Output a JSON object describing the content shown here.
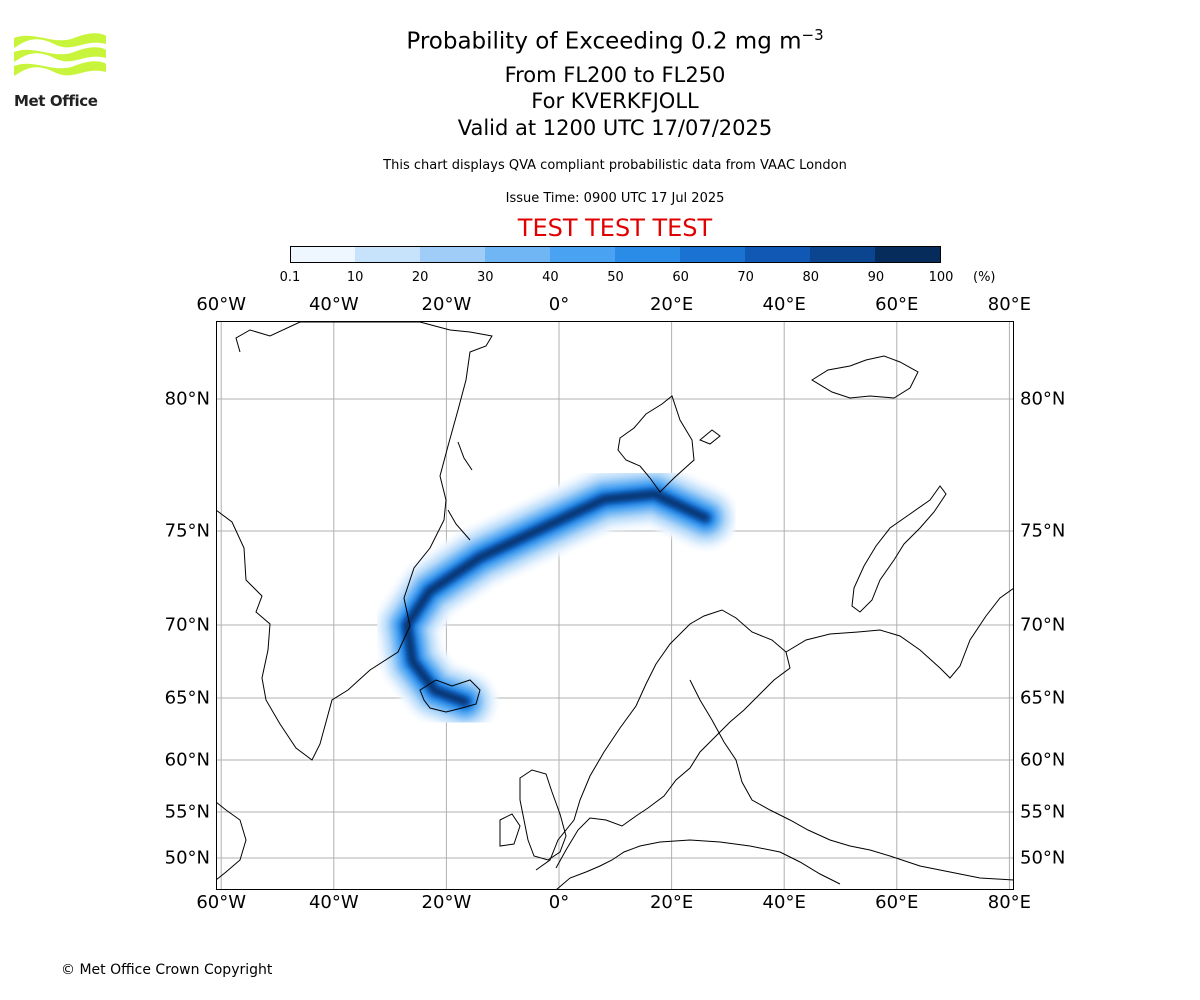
{
  "branding": {
    "logo_text": "Met Office",
    "logo_color": "#c8f53c"
  },
  "title": {
    "line1": "Probability of Exceeding 0.2 mg m",
    "line1_sup": "−3",
    "line2": "From FL200 to FL250",
    "line3": "For KVERKFJOLL",
    "line4": "Valid at 1200 UTC 17/07/2025",
    "subtitle": "This chart displays QVA compliant probabilistic data from VAAC London",
    "issue_time": "Issue Time: 0900 UTC 17 Jul 2025",
    "test_banner": "TEST TEST TEST"
  },
  "colorbar": {
    "unit": "(%)",
    "ticks": [
      "0.1",
      "10",
      "20",
      "30",
      "40",
      "50",
      "60",
      "70",
      "80",
      "90",
      "100"
    ],
    "colors": [
      "#eef6ff",
      "#c7e3fb",
      "#9fcdf7",
      "#70b5f4",
      "#4aa2f2",
      "#2b8ce8",
      "#1a72d2",
      "#1058b3",
      "#0b4590",
      "#062c5c"
    ]
  },
  "map": {
    "lon_labels": [
      "60°W",
      "40°W",
      "20°W",
      "0°",
      "20°E",
      "40°E",
      "60°E",
      "80°E"
    ],
    "lat_labels": [
      "80°N",
      "75°N",
      "70°N",
      "65°N",
      "60°N",
      "55°N",
      "50°N"
    ],
    "gridline_color": "#b0b0b0",
    "plume": {
      "source": "Kverkfjoll",
      "source_lon": -16.7,
      "source_lat": 64.7,
      "path_lonlat": [
        [
          -16.7,
          64.7
        ],
        [
          -22,
          65.5
        ],
        [
          -26,
          67.5
        ],
        [
          -27,
          70
        ],
        [
          -23,
          71.8
        ],
        [
          -14,
          73.6
        ],
        [
          -2,
          75.2
        ],
        [
          8,
          76.2
        ],
        [
          17,
          76.4
        ],
        [
          26,
          75.5
        ]
      ],
      "max_probability_pct": 100
    }
  },
  "footer": {
    "copyright": "© Met Office Crown Copyright"
  }
}
